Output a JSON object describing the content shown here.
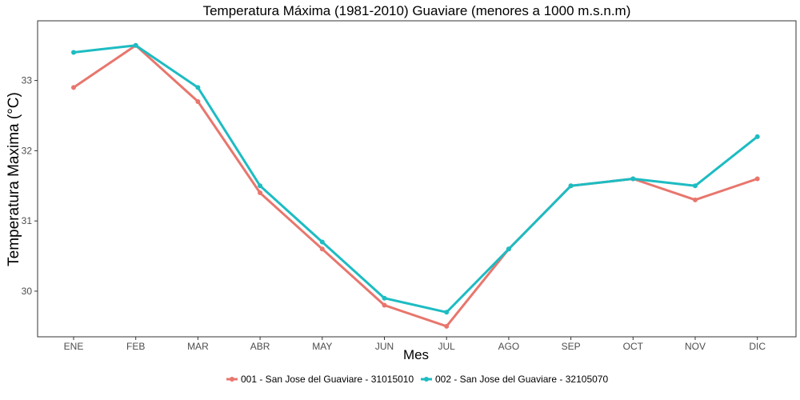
{
  "chart_data": {
    "type": "line",
    "title": "Temperatura Máxima (1981-2010) Guaviare (menores a 1000 m.s.n.m)",
    "xlabel": "Mes",
    "ylabel": "Temperatura Maxima (°C)",
    "categories": [
      "ENE",
      "FEB",
      "MAR",
      "ABR",
      "MAY",
      "JUN",
      "JUL",
      "AGO",
      "SEP",
      "OCT",
      "NOV",
      "DIC"
    ],
    "yticks": [
      30,
      31,
      32,
      33
    ],
    "ylim": [
      29.35,
      33.85
    ],
    "grid": false,
    "legend_position": "bottom",
    "series": [
      {
        "name": "001 - San Jose del Guaviare - 31015010",
        "color": "#E8766D",
        "values": [
          32.9,
          33.5,
          32.7,
          31.4,
          30.6,
          29.8,
          29.5,
          30.6,
          31.5,
          31.6,
          31.3,
          31.6
        ]
      },
      {
        "name": "002 - San Jose del Guaviare - 32105070",
        "color": "#1DBCC2",
        "values": [
          33.4,
          33.5,
          32.9,
          31.5,
          30.7,
          29.9,
          29.7,
          30.6,
          31.5,
          31.6,
          31.5,
          32.2
        ]
      }
    ]
  }
}
